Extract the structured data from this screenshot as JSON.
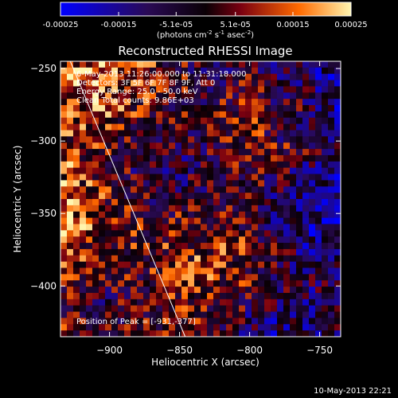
{
  "colorbar": {
    "ticks": [
      "-0.00025",
      "-0.00015",
      "-5.1e-05",
      "5.1e-05",
      "0.00015",
      "0.00025"
    ],
    "unit_main": "(photons cm",
    "unit_exp1": "-2",
    "unit_mid": " s",
    "unit_exp2": "-1",
    "unit_tail": " asec",
    "unit_exp3": "-2",
    "unit_close": ")",
    "colors": [
      "#0000ff",
      "#2a0a55",
      "#0a0005",
      "#7a0010",
      "#ff6a00",
      "#fff6b0"
    ]
  },
  "chart_data": {
    "type": "heatmap",
    "title": "Reconstructed RHESSI Image",
    "xlabel": "Heliocentric X (arcsec)",
    "ylabel": "Heliocentric Y (arcsec)",
    "xlim": [
      -935,
      -735
    ],
    "ylim": [
      -435,
      -245
    ],
    "x_ticks": [
      -900,
      -850,
      -800,
      -750
    ],
    "y_ticks": [
      -250,
      -300,
      -350,
      -400
    ],
    "zlim": [
      -0.00025,
      0.00025
    ],
    "annotations": [
      "6-May-2013 11:26:00.000 to 11:31:18.000",
      "Detectors: 3F 5F 6F 7F 8F 9F, Att 0",
      "Energy Range: 25.0 - 50.0 keV",
      "Clean    Total counts: 9.86E+03"
    ],
    "peak_label": "Position of Peak = [-931,-377]",
    "limb_line": [
      [
        -928,
        -245
      ],
      [
        -846,
        -435
      ]
    ]
  },
  "footer": {
    "timestamp": "10-May-2013 22:21"
  }
}
